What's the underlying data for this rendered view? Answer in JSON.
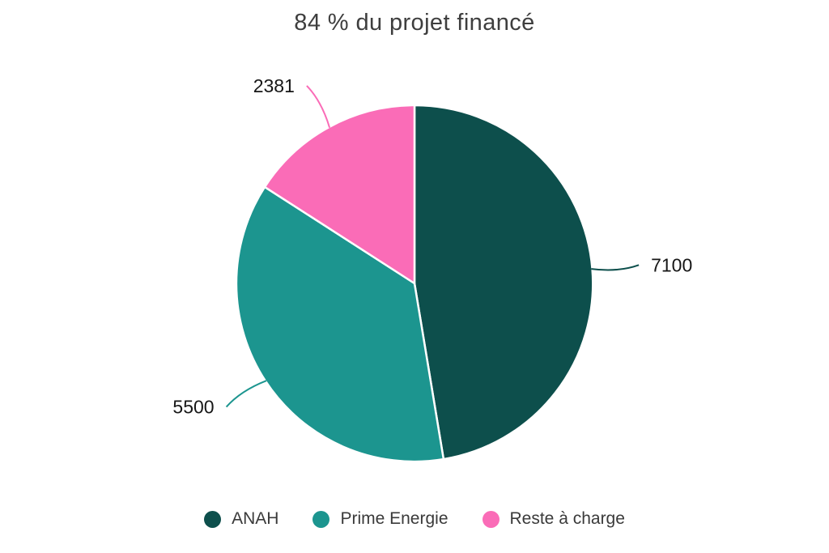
{
  "chart_data": {
    "type": "pie",
    "title": "84 % du projet financé",
    "slices": [
      {
        "label": "ANAH",
        "value": 7100,
        "value_label": "7100",
        "color": "#0D4F4C"
      },
      {
        "label": "Prime Energie",
        "value": 5500,
        "value_label": "5500",
        "color": "#1C958F"
      },
      {
        "label": "Reste à charge",
        "value": 2381,
        "value_label": "2381",
        "color": "#FA6CB7"
      }
    ],
    "start_angle": "top",
    "direction": "clockwise",
    "legend_position": "bottom",
    "grid": false
  },
  "colors": {
    "background": "#FFFFFF",
    "slice_border": "#FFFFFF",
    "title_text": "#3E3E3E",
    "value_label_text": "#161616",
    "legend_text": "#3A3A3A"
  }
}
